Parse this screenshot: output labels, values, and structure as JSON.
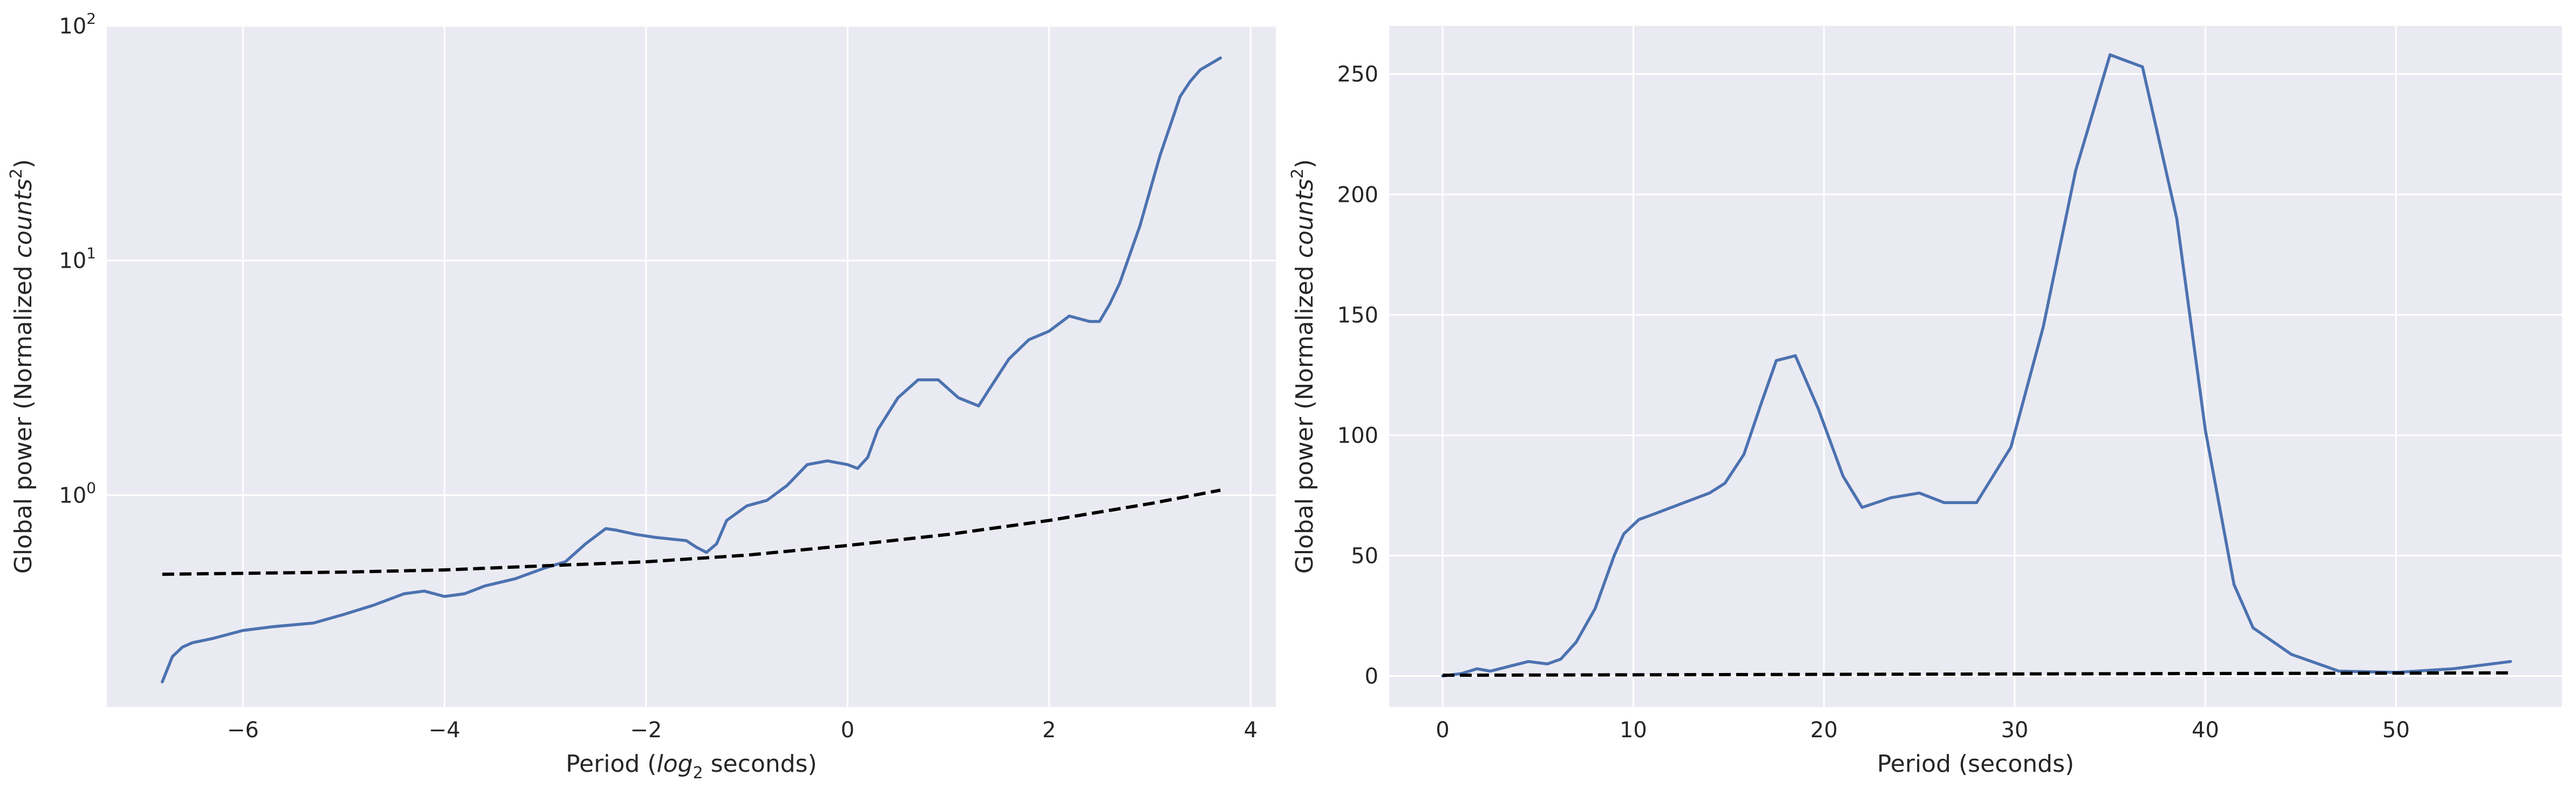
{
  "colors": {
    "background": "#eaeaf2",
    "grid": "#ffffff",
    "series_line": "#4c72b0",
    "reference_line": "#000000",
    "text": "#262626"
  },
  "chart_data": [
    {
      "type": "line",
      "xlabel": {
        "prefix": "Period (",
        "italic": "log",
        "sub": "2",
        "suffix": " seconds)"
      },
      "ylabel": {
        "prefix": "Global power (Normalized ",
        "italic": "counts",
        "sup": "2",
        "suffix": ")"
      },
      "xlim": [
        -7.35,
        4.25
      ],
      "ylim": [
        0.125,
        100
      ],
      "yscale": "log",
      "grid": true,
      "xticks": [
        -6,
        -4,
        -2,
        0,
        2,
        4
      ],
      "xtick_labels": [
        "−6",
        "−4",
        "−2",
        "0",
        "2",
        "4"
      ],
      "yticks": [
        {
          "value": 1,
          "base": "10",
          "exp": "0"
        },
        {
          "value": 10,
          "base": "10",
          "exp": "1"
        },
        {
          "value": 100,
          "base": "10",
          "exp": "2"
        }
      ],
      "series": [
        {
          "style": "solid",
          "color": "#4c72b0",
          "x": [
            -6.8,
            -6.7,
            -6.6,
            -6.5,
            -6.3,
            -6.0,
            -5.7,
            -5.3,
            -5.0,
            -4.7,
            -4.4,
            -4.2,
            -4.0,
            -3.8,
            -3.6,
            -3.3,
            -3.0,
            -2.8,
            -2.6,
            -2.4,
            -2.3,
            -2.1,
            -1.9,
            -1.6,
            -1.5,
            -1.4,
            -1.3,
            -1.2,
            -1.0,
            -0.8,
            -0.6,
            -0.4,
            -0.2,
            0.0,
            0.1,
            0.2,
            0.3,
            0.5,
            0.7,
            0.9,
            1.1,
            1.3,
            1.4,
            1.6,
            1.8,
            2.0,
            2.2,
            2.4,
            2.5,
            2.6,
            2.7,
            2.9,
            3.1,
            3.3,
            3.4,
            3.5,
            3.7
          ],
          "y": [
            0.16,
            0.205,
            0.225,
            0.235,
            0.245,
            0.265,
            0.275,
            0.285,
            0.31,
            0.34,
            0.38,
            0.39,
            0.37,
            0.38,
            0.41,
            0.44,
            0.49,
            0.52,
            0.62,
            0.72,
            0.71,
            0.68,
            0.66,
            0.64,
            0.6,
            0.57,
            0.62,
            0.78,
            0.9,
            0.95,
            1.1,
            1.35,
            1.4,
            1.35,
            1.3,
            1.45,
            1.9,
            2.6,
            3.1,
            3.1,
            2.6,
            2.4,
            2.8,
            3.8,
            4.6,
            5.0,
            5.8,
            5.5,
            5.5,
            6.5,
            8.0,
            14.0,
            28.0,
            50.0,
            58.0,
            65.0,
            73.0
          ]
        },
        {
          "style": "dashed",
          "color": "#000000",
          "x": [
            -6.8,
            -5.0,
            -4.0,
            -3.0,
            -2.0,
            -1.0,
            0.0,
            1.0,
            2.0,
            3.0,
            3.7
          ],
          "y": [
            0.46,
            0.47,
            0.48,
            0.5,
            0.52,
            0.555,
            0.61,
            0.68,
            0.78,
            0.92,
            1.05
          ]
        }
      ]
    },
    {
      "type": "line",
      "xlabel": {
        "prefix": "Period (seconds)",
        "italic": "",
        "sub": "",
        "suffix": ""
      },
      "ylabel": {
        "prefix": "Global power (Normalized ",
        "italic": "counts",
        "sup": "2",
        "suffix": ")"
      },
      "xlim": [
        -2.8,
        58.7
      ],
      "ylim": [
        -12.9,
        270
      ],
      "yscale": "linear",
      "grid": true,
      "xticks": [
        0,
        10,
        20,
        30,
        40,
        50
      ],
      "xtick_labels": [
        "0",
        "10",
        "20",
        "30",
        "40",
        "50"
      ],
      "yticks": [
        {
          "value": 0,
          "label": "0"
        },
        {
          "value": 50,
          "label": "50"
        },
        {
          "value": 100,
          "label": "100"
        },
        {
          "value": 150,
          "label": "150"
        },
        {
          "value": 200,
          "label": "200"
        },
        {
          "value": 250,
          "label": "250"
        }
      ],
      "series": [
        {
          "style": "solid",
          "color": "#4c72b0",
          "x": [
            0,
            1.0,
            1.8,
            2.5,
            3.5,
            4.5,
            5.5,
            6.2,
            7.0,
            8.0,
            9.0,
            9.5,
            10.3,
            11.0,
            12.0,
            13.0,
            14.0,
            14.8,
            15.8,
            16.7,
            17.5,
            18.5,
            19.7,
            21.0,
            22.0,
            23.5,
            25.0,
            26.3,
            28.0,
            29.8,
            31.5,
            33.2,
            35.0,
            36.7,
            38.5,
            40.0,
            41.5,
            42.5,
            44.5,
            47.0,
            50.0,
            53.0,
            56.0
          ],
          "y": [
            0,
            1.0,
            3.0,
            2.0,
            4.0,
            6.0,
            5.0,
            7.0,
            14.0,
            28.0,
            50.0,
            59.0,
            65.0,
            67.0,
            70.0,
            73.0,
            76.0,
            80.0,
            92.0,
            113.0,
            131.0,
            133.0,
            111.0,
            83.0,
            70.0,
            74.0,
            76.0,
            72.0,
            72.0,
            95.0,
            145.0,
            210.0,
            258.0,
            253.0,
            190.0,
            102.0,
            38.0,
            20.0,
            9.0,
            2.0,
            1.5,
            3.0,
            6.0
          ]
        },
        {
          "style": "dashed",
          "color": "#000000",
          "x": [
            0,
            56
          ],
          "y": [
            0.3,
            1.3
          ]
        }
      ]
    }
  ]
}
